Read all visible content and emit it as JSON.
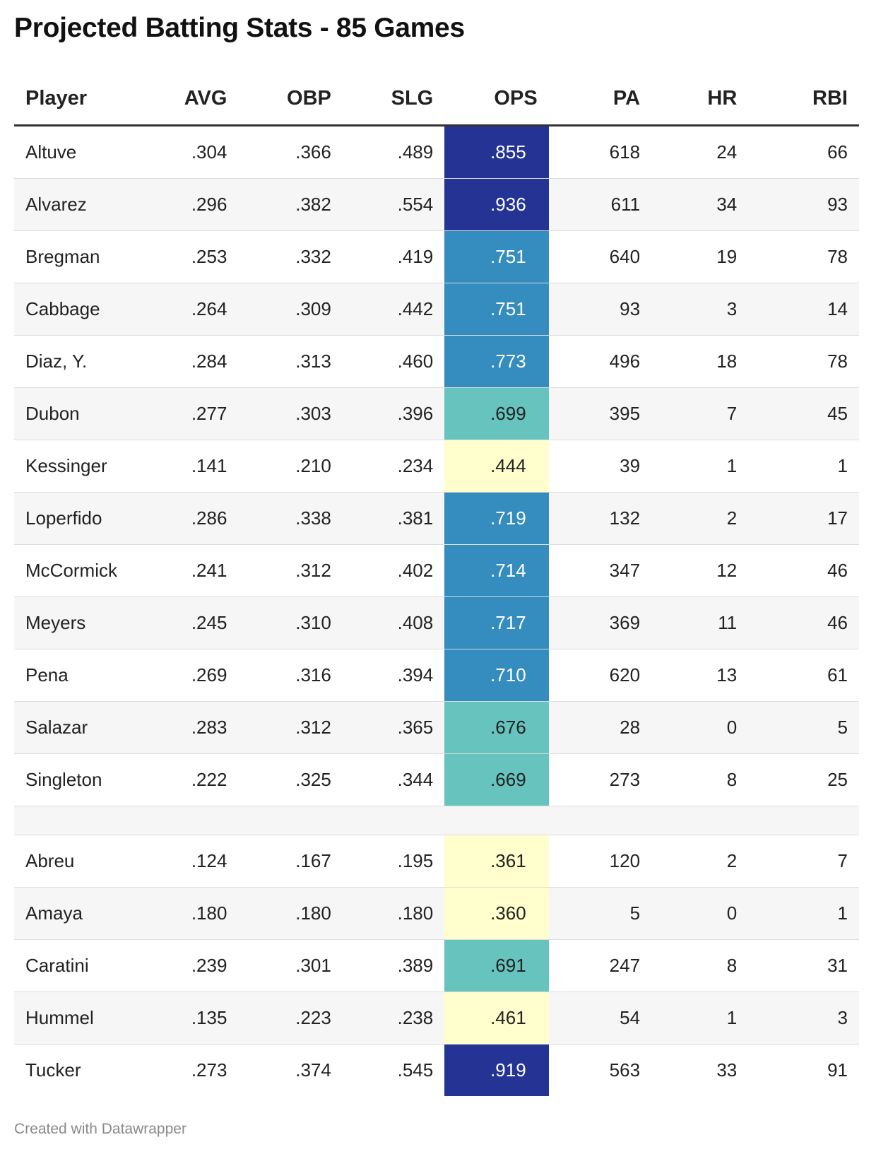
{
  "title": "Projected Batting Stats - 85 Games",
  "footer": "Created with Datawrapper",
  "colors": {
    "ops_scale": {
      "high": "#253494",
      "mid_high": "#348cbf",
      "mid": "#67c3be",
      "low": "#fffecc"
    }
  },
  "chart_data": {
    "type": "table",
    "columns": [
      "Player",
      "AVG",
      "OBP",
      "SLG",
      "OPS",
      "PA",
      "HR",
      "RBI"
    ],
    "heatmap_column": "OPS",
    "groups": [
      {
        "rows": [
          [
            "Altuve",
            ".304",
            ".366",
            ".489",
            ".855",
            "618",
            "24",
            "66"
          ],
          [
            "Alvarez",
            ".296",
            ".382",
            ".554",
            ".936",
            "611",
            "34",
            "93"
          ],
          [
            "Bregman",
            ".253",
            ".332",
            ".419",
            ".751",
            "640",
            "19",
            "78"
          ],
          [
            "Cabbage",
            ".264",
            ".309",
            ".442",
            ".751",
            "93",
            "3",
            "14"
          ],
          [
            "Diaz, Y.",
            ".284",
            ".313",
            ".460",
            ".773",
            "496",
            "18",
            "78"
          ],
          [
            "Dubon",
            ".277",
            ".303",
            ".396",
            ".699",
            "395",
            "7",
            "45"
          ],
          [
            "Kessinger",
            ".141",
            ".210",
            ".234",
            ".444",
            "39",
            "1",
            "1"
          ],
          [
            "Loperfido",
            ".286",
            ".338",
            ".381",
            ".719",
            "132",
            "2",
            "17"
          ],
          [
            "McCormick",
            ".241",
            ".312",
            ".402",
            ".714",
            "347",
            "12",
            "46"
          ],
          [
            "Meyers",
            ".245",
            ".310",
            ".408",
            ".717",
            "369",
            "11",
            "46"
          ],
          [
            "Pena",
            ".269",
            ".316",
            ".394",
            ".710",
            "620",
            "13",
            "61"
          ],
          [
            "Salazar",
            ".283",
            ".312",
            ".365",
            ".676",
            "28",
            "0",
            "5"
          ],
          [
            "Singleton",
            ".222",
            ".325",
            ".344",
            ".669",
            "273",
            "8",
            "25"
          ]
        ]
      },
      {
        "rows": [
          [
            "Abreu",
            ".124",
            ".167",
            ".195",
            ".361",
            "120",
            "2",
            "7"
          ],
          [
            "Amaya",
            ".180",
            ".180",
            ".180",
            ".360",
            "5",
            "0",
            "1"
          ],
          [
            "Caratini",
            ".239",
            ".301",
            ".389",
            ".691",
            "247",
            "8",
            "31"
          ],
          [
            "Hummel",
            ".135",
            ".223",
            ".238",
            ".461",
            "54",
            "1",
            "3"
          ],
          [
            "Tucker",
            ".273",
            ".374",
            ".545",
            ".919",
            "563",
            "33",
            "91"
          ]
        ]
      }
    ]
  }
}
